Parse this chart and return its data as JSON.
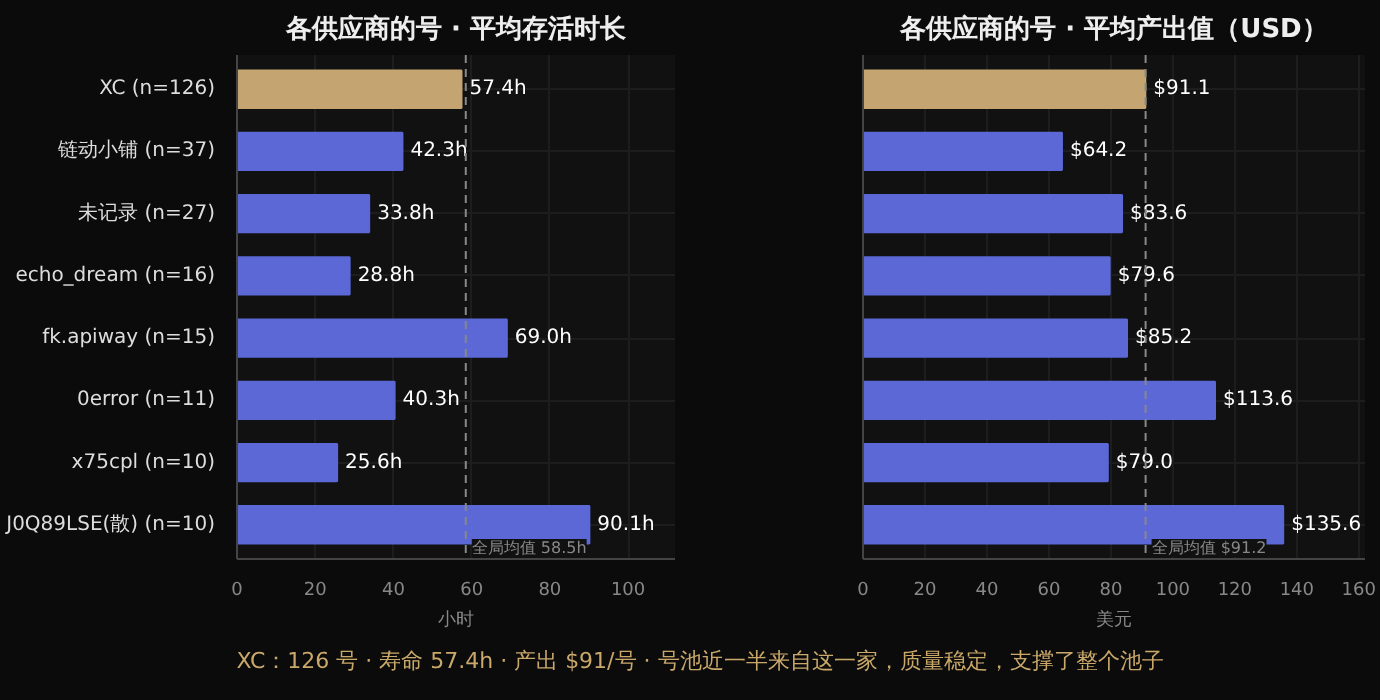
{
  "chart_data": [
    {
      "type": "bar",
      "orientation": "horizontal",
      "title": "各供应商的号 · 平均存活时长",
      "xlabel": "小时",
      "categories": [
        "XC (n=126)",
        "链动小铺 (n=37)",
        "未记录 (n=27)",
        "echo_dream (n=16)",
        "fk.apiway (n=15)",
        "0error (n=11)",
        "x75cpl (n=10)",
        "J0Q89LSE(散) (n=10)"
      ],
      "values": [
        57.4,
        42.3,
        33.8,
        28.8,
        69.0,
        40.3,
        25.6,
        90.1
      ],
      "value_labels": [
        "57.4h",
        "42.3h",
        "33.8h",
        "28.8h",
        "69.0h",
        "40.3h",
        "25.6h",
        "90.1h"
      ],
      "colors": [
        "#c4a571",
        "#5b68d6",
        "#5b68d6",
        "#5b68d6",
        "#5b68d6",
        "#5b68d6",
        "#5b68d6",
        "#5b68d6"
      ],
      "xlim": [
        0,
        112
      ],
      "xticks": [
        0,
        20,
        40,
        60,
        80,
        100
      ],
      "grid": true,
      "ref_lines": [
        {
          "axis": "x",
          "value": 58.5,
          "label": "全局均值 58.5h",
          "line_style": "dashed",
          "color": "#888888"
        }
      ],
      "annotations": [
        "XC：126 号 · 寿命 57.4h · 产出 $91/号 · 号池近一半来自这一家，质量稳定，支撑了整个池子"
      ]
    },
    {
      "type": "bar",
      "orientation": "horizontal",
      "title": "各供应商的号 · 平均产出值（USD）",
      "xlabel": "美元",
      "categories": [
        null,
        null,
        null,
        null,
        null,
        null,
        null,
        null
      ],
      "values": [
        91.1,
        64.2,
        83.6,
        79.6,
        85.2,
        113.6,
        79.0,
        135.6
      ],
      "value_labels": [
        "$91.1",
        "$64.2",
        "$83.6",
        "$79.6",
        "$85.2",
        "$113.6",
        "$79.0",
        "$135.6"
      ],
      "colors": [
        "#c4a571",
        "#5b68d6",
        "#5b68d6",
        "#5b68d6",
        "#5b68d6",
        "#5b68d6",
        "#5b68d6",
        "#5b68d6"
      ],
      "xlim": [
        0,
        162
      ],
      "xticks": [
        0,
        20,
        40,
        60,
        80,
        100,
        120,
        140,
        160
      ],
      "grid": true,
      "ref_lines": [
        {
          "axis": "x",
          "value": 91.2,
          "label": "全局均值 $91.2",
          "line_style": "dashed",
          "color": "#888888"
        }
      ]
    }
  ]
}
